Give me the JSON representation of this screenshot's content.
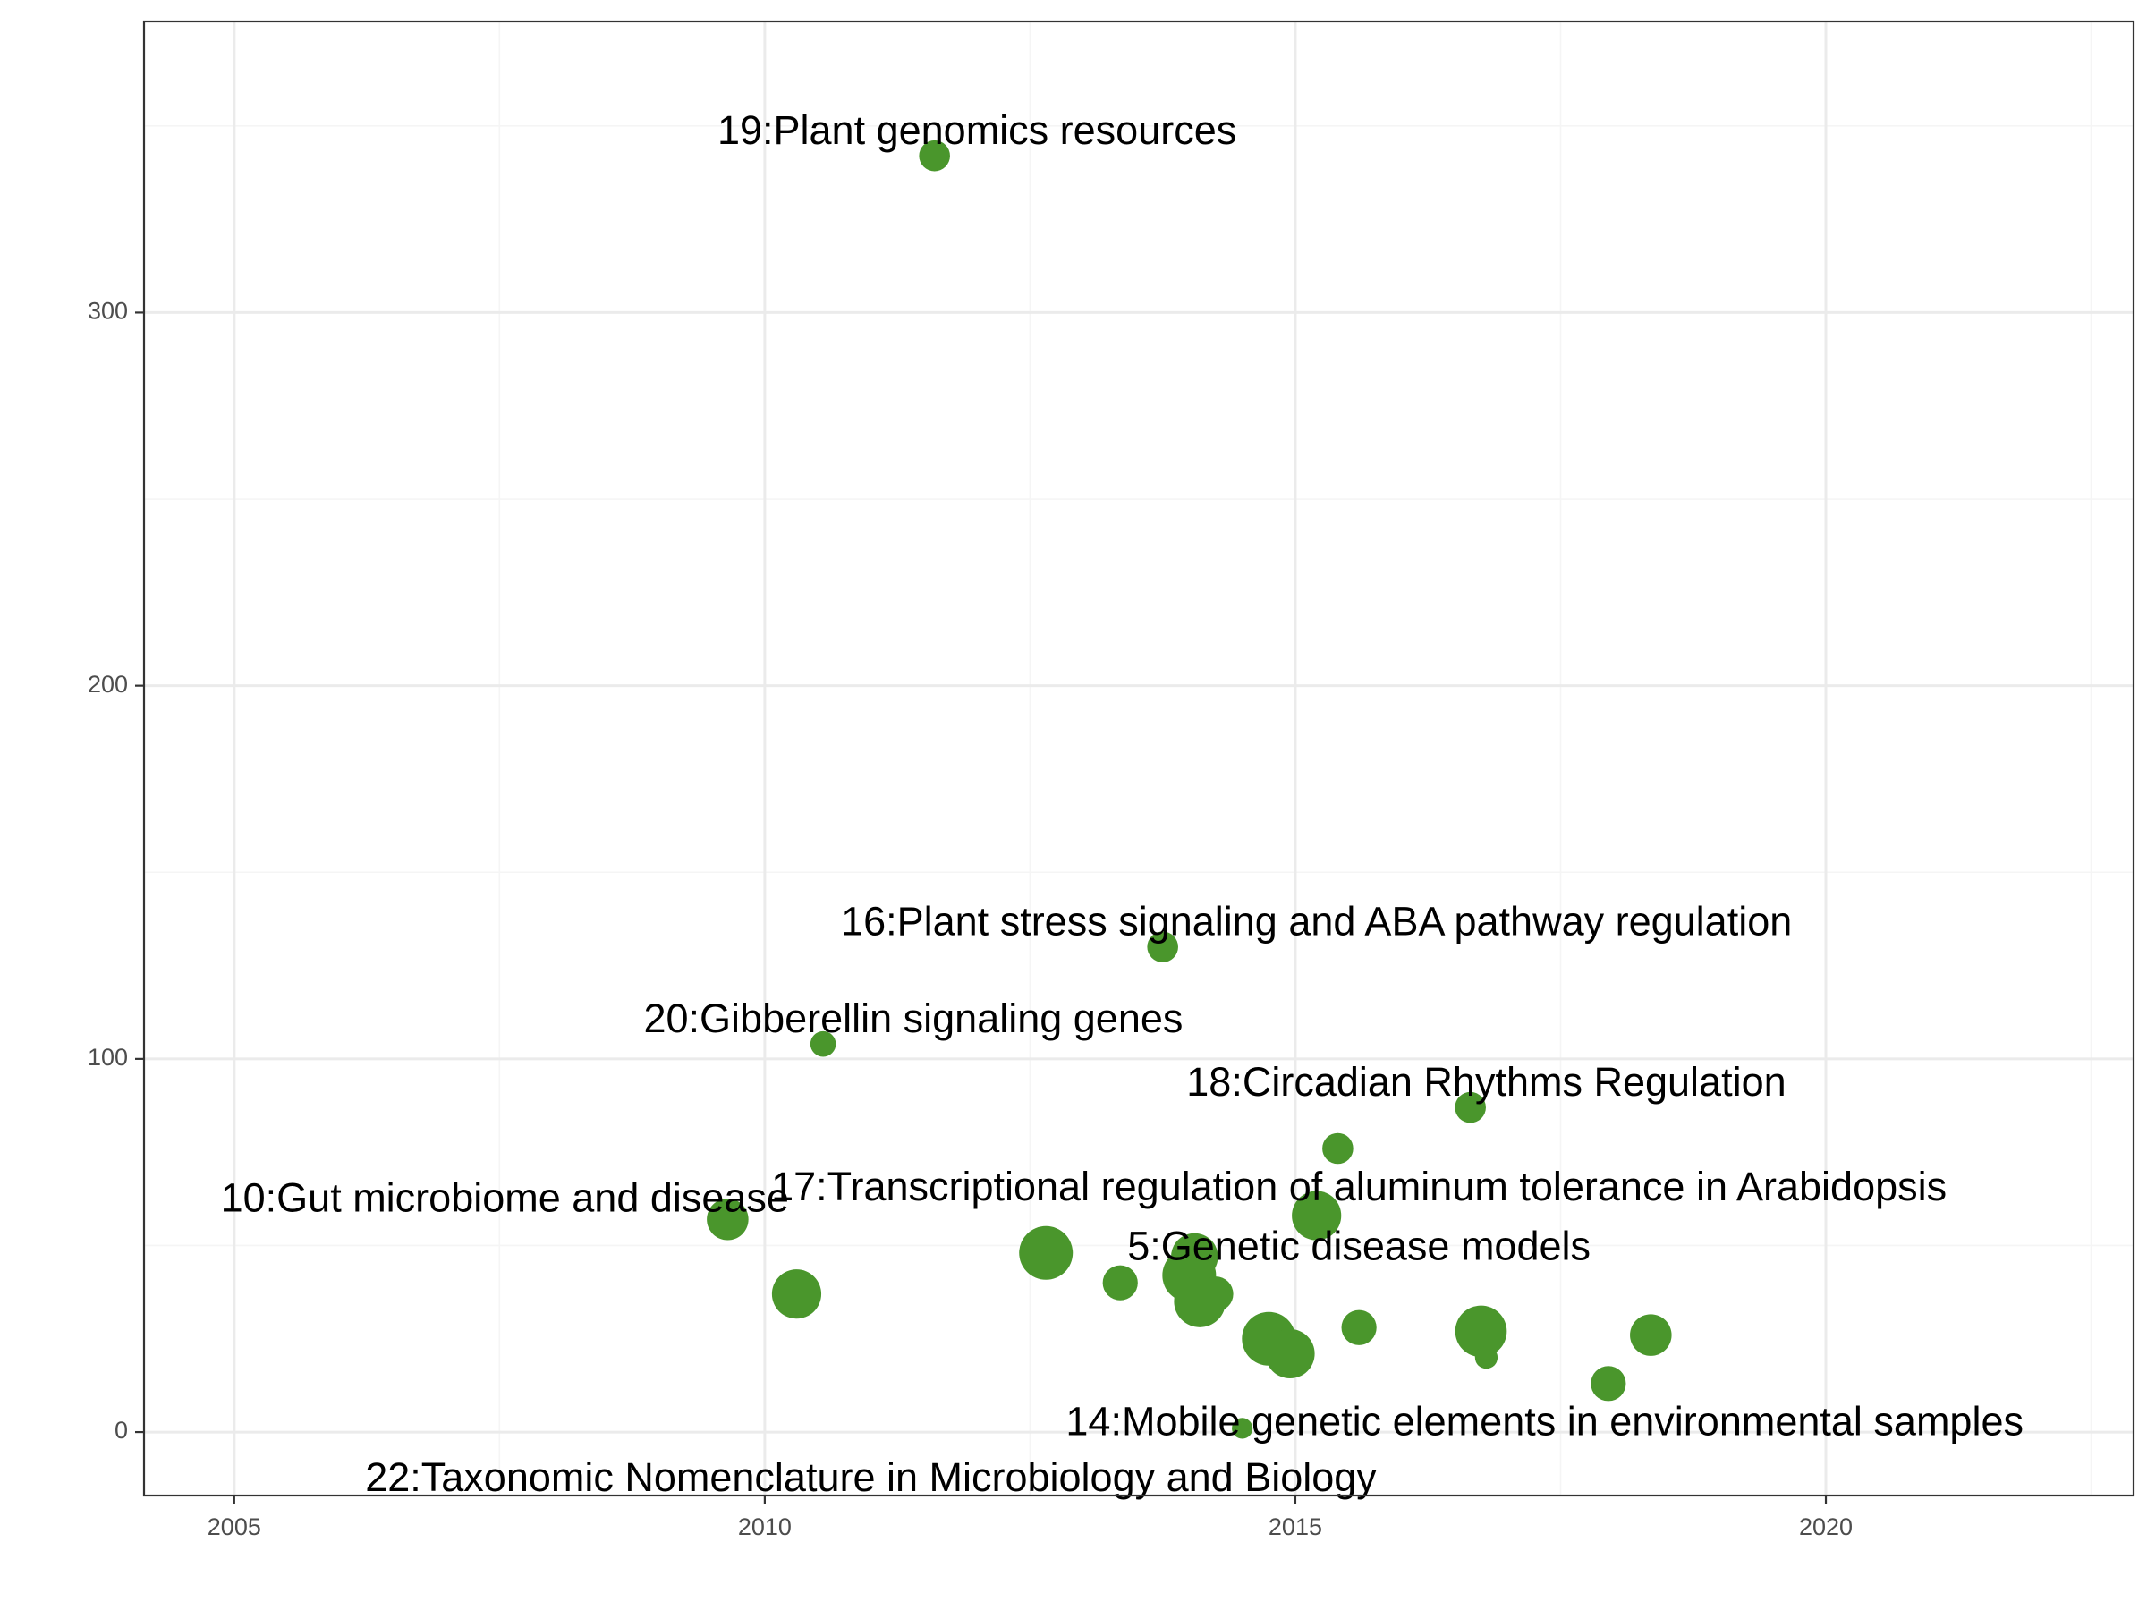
{
  "chart_data": {
    "type": "scatter",
    "title": "",
    "xlabel": "",
    "ylabel": "",
    "xlim": [
      2004.15,
      2022.9
    ],
    "ylim": [
      -17,
      378
    ],
    "x_ticks": [
      2005,
      2010,
      2015,
      2020
    ],
    "x_tick_labels": [
      "2005",
      "2010",
      "2015",
      "2020"
    ],
    "x_minor_ticks": [
      2007.5,
      2012.5,
      2017.5,
      2022.5
    ],
    "y_ticks": [
      0,
      100,
      200,
      300
    ],
    "y_tick_labels": [
      "0",
      "100",
      "200",
      "300"
    ],
    "y_minor_ticks": [
      50,
      150,
      250,
      350
    ],
    "grid": true,
    "legend": "none",
    "colors": {
      "point": "#4a962c",
      "grid_major": "#ebebeb",
      "grid_minor": "#f5f5f5",
      "panel_border": "#333333",
      "axis_tick": "#333333",
      "text": "#000000",
      "tick_text": "#4d4d4d"
    },
    "points": [
      {
        "x": 2011.6,
        "y": 342,
        "size": 1,
        "label": "19:Plant genomics resources",
        "label_x": 2012.0,
        "label_y": 348
      },
      {
        "x": 2013.75,
        "y": 130,
        "size": 1,
        "label": "16:Plant stress signaling and ABA pathway regulation",
        "label_x": 2015.2,
        "label_y": 136
      },
      {
        "x": 2010.55,
        "y": 104,
        "size": 0.5,
        "label": "20:Gibberellin signaling genes",
        "label_x": 2011.4,
        "label_y": 110
      },
      {
        "x": 2016.65,
        "y": 87,
        "size": 1,
        "label": "18:Circadian Rhythms Regulation",
        "label_x": 2016.8,
        "label_y": 93
      },
      {
        "x": 2015.4,
        "y": 76,
        "size": 1
      },
      {
        "x": 2015.2,
        "y": 58,
        "size": 4,
        "label": "17:Transcriptional regulation of aluminum tolerance in Arabidopsis",
        "label_x": 2015.6,
        "label_y": 65
      },
      {
        "x": 2009.65,
        "y": 57,
        "size": 2.5,
        "label": "10:Gut microbiome and disease",
        "label_x": 2007.55,
        "label_y": 62
      },
      {
        "x": 2012.65,
        "y": 48,
        "size": 5
      },
      {
        "x": 2014.05,
        "y": 47,
        "size": 3.5,
        "label": "5:Genetic disease models",
        "label_x": 2015.6,
        "label_y": 49
      },
      {
        "x": 2014.0,
        "y": 42,
        "size": 5
      },
      {
        "x": 2013.35,
        "y": 40,
        "size": 1.5
      },
      {
        "x": 2010.3,
        "y": 37,
        "size": 4
      },
      {
        "x": 2014.25,
        "y": 37,
        "size": 1.5
      },
      {
        "x": 2014.1,
        "y": 35,
        "size": 4.5
      },
      {
        "x": 2015.6,
        "y": 28,
        "size": 1.5
      },
      {
        "x": 2016.75,
        "y": 27,
        "size": 4.5
      },
      {
        "x": 2018.35,
        "y": 26,
        "size": 2.5
      },
      {
        "x": 2014.75,
        "y": 25,
        "size": 5
      },
      {
        "x": 2014.95,
        "y": 21,
        "size": 4
      },
      {
        "x": 2016.8,
        "y": 20,
        "size": 0.3
      },
      {
        "x": 2017.95,
        "y": 13,
        "size": 1.5
      },
      {
        "x": 2014.5,
        "y": 1,
        "size": 0.2,
        "label": "14:Mobile genetic elements in environmental samples",
        "label_x": 2017.35,
        "label_y": 2
      },
      {
        "label": "22:Taxonomic Nomenclature in Microbiology and Biology",
        "label_x": 2011.0,
        "label_y": -13
      }
    ]
  }
}
